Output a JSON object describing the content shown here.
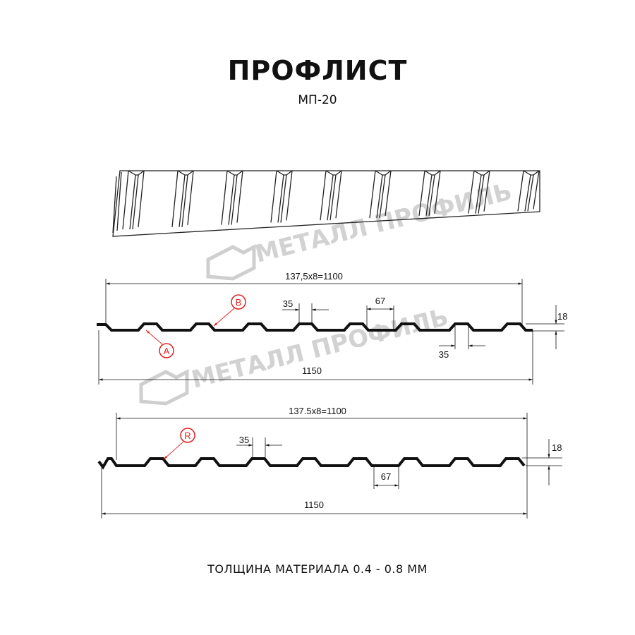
{
  "header": {
    "title": "ПРОФЛИСТ",
    "subtitle": "МП-20"
  },
  "watermark": {
    "text": "МЕТАЛЛ ПРОФИЛЬ",
    "color": "#c8c8c8"
  },
  "profile_a": {
    "pitch_dim": "137,5x8=1100",
    "total_dim": "1150",
    "top_width_dim": "35",
    "bottom_width_dim": "35",
    "rib_gap_dim": "67",
    "height_dim": "18",
    "marker_a": "A",
    "marker_b": "B"
  },
  "profile_r": {
    "pitch_dim": "137.5x8=1100",
    "total_dim": "1150",
    "top_width_dim": "35",
    "rib_gap_dim": "67",
    "height_dim": "18",
    "marker_r": "R"
  },
  "colors": {
    "profile": "#111111",
    "marker": "#e32020"
  },
  "footer": {
    "thickness": "ТОЛЩИНА МАТЕРИАЛА 0.4 - 0.8 ММ"
  }
}
